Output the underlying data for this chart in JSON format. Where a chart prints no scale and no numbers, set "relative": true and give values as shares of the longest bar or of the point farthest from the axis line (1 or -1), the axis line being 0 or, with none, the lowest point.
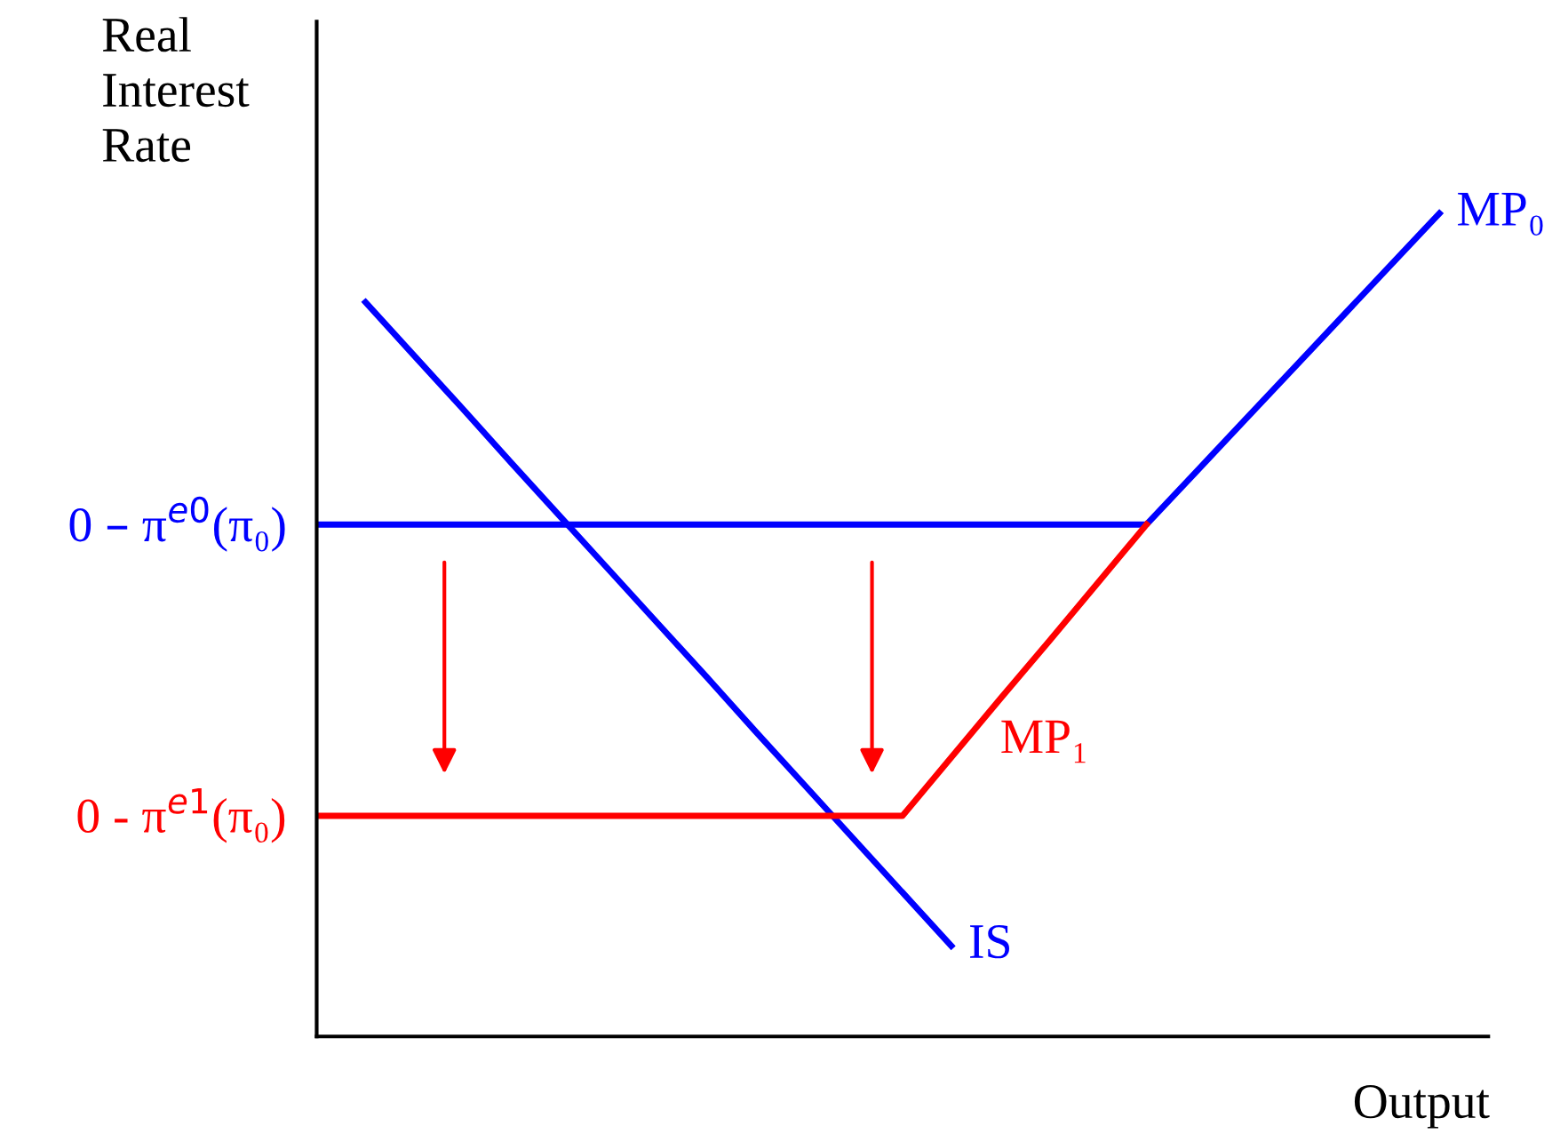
{
  "chart_data": {
    "type": "line",
    "relative": true,
    "xlabel": "Output",
    "ylabel": "Real\nInterest\nRate",
    "marker": "none",
    "line_style": "solid",
    "categories": [
      null,
      null,
      null,
      null,
      null,
      null,
      null,
      null,
      null,
      null,
      null,
      null,
      null,
      null,
      null,
      null,
      null,
      null,
      null,
      null,
      null,
      null,
      null,
      null,
      null
    ],
    "annotations": [
      "0 – π$^{e0}$(π₀)",
      "0 - π$^{e1}$(π₀)"
    ],
    "series": [
      {
        "name": "MP₀",
        "color": "#0000ff",
        "values": [
          0.622,
          0.622,
          0.622,
          0.622,
          0.622,
          0.622,
          0.622,
          0.622,
          0.622,
          0.622,
          0.622,
          0.622,
          0.622,
          0.622,
          0.622,
          0.622,
          0.622,
          0.622,
          0.685,
          0.748,
          0.811,
          0.874,
          0.937,
          1,
          null
        ]
      },
      {
        "name": "IS",
        "color": "#0000ff",
        "values": [
          null,
          0.892,
          0.827,
          0.762,
          0.696,
          0.631,
          0.566,
          0.501,
          0.436,
          0.37,
          0.305,
          0.24,
          0.175,
          0.11,
          null,
          null,
          null,
          null,
          null,
          null,
          null,
          null,
          null,
          null,
          null
        ]
      },
      {
        "name": "MP₁",
        "color": "#ff0000",
        "values": [
          0.268,
          0.268,
          0.268,
          0.268,
          0.268,
          0.268,
          0.268,
          0.268,
          0.268,
          0.268,
          0.268,
          0.268,
          0.268,
          0.339,
          0.41,
          0.48,
          0.551,
          0.622,
          null,
          null,
          null,
          null,
          null,
          null,
          null
        ]
      }
    ]
  }
}
